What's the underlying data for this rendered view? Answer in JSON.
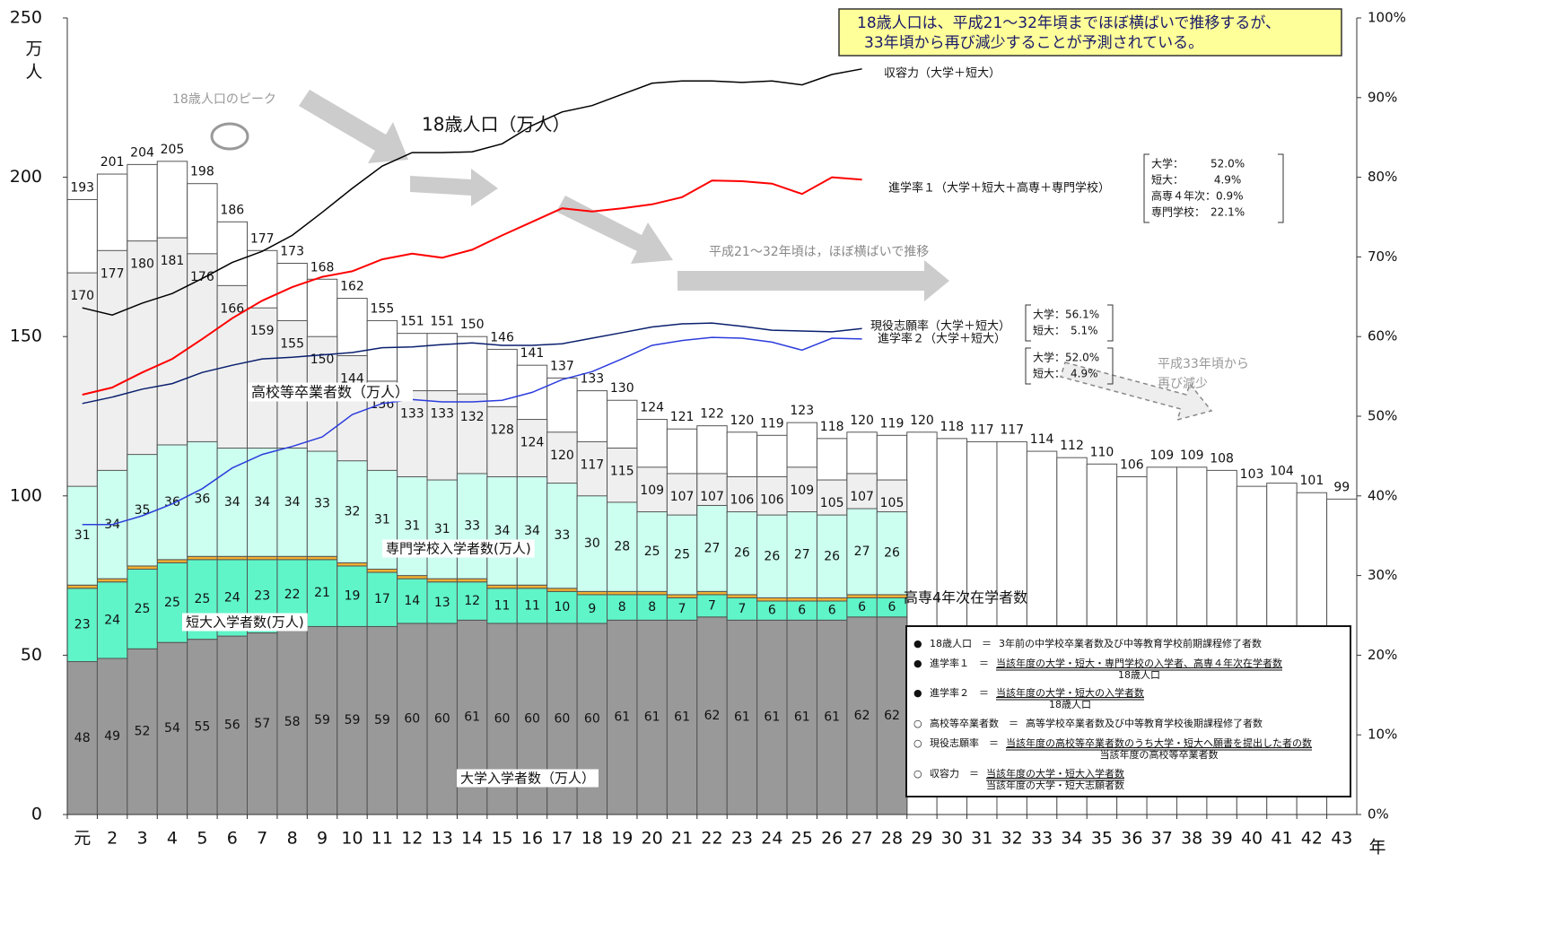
{
  "chart_data": {
    "type": "bar",
    "categories": [
      "元",
      "2",
      "3",
      "4",
      "5",
      "6",
      "7",
      "8",
      "9",
      "10",
      "11",
      "12",
      "13",
      "14",
      "15",
      "16",
      "17",
      "18",
      "19",
      "20",
      "21",
      "22",
      "23",
      "24",
      "25",
      "26",
      "27",
      "28",
      "29",
      "30",
      "31",
      "32",
      "33",
      "34",
      "35",
      "36",
      "37",
      "38",
      "39",
      "40",
      "41",
      "42",
      "43"
    ],
    "ylim": [
      0,
      250
    ],
    "yticks": [
      0,
      50,
      100,
      150,
      200,
      250
    ],
    "ylabel": "万人",
    "y2lim": [
      0,
      100
    ],
    "y2ticks": [
      {
        "value": 0,
        "label": "0%"
      },
      {
        "value": 10,
        "label": "10%"
      },
      {
        "value": 20,
        "label": "20%"
      },
      {
        "value": 30,
        "label": "30%"
      },
      {
        "value": 40,
        "label": "40%"
      },
      {
        "value": 50,
        "label": "50%"
      },
      {
        "value": 60,
        "label": "60%"
      },
      {
        "value": 70,
        "label": "70%"
      },
      {
        "value": 80,
        "label": "80%"
      },
      {
        "value": 90,
        "label": "90%"
      },
      {
        "value": 100,
        "label": "100%"
      }
    ],
    "xlabel": "年",
    "grid": false,
    "series": [
      {
        "name": "18歳人口（万人）",
        "type": "bar",
        "color": "#ffffff",
        "values": [
          193,
          201,
          204,
          205,
          198,
          186,
          177,
          173,
          168,
          162,
          155,
          151,
          151,
          150,
          146,
          141,
          137,
          133,
          130,
          124,
          121,
          122,
          120,
          119,
          123,
          118,
          120,
          119,
          120,
          118,
          117,
          117,
          114,
          112,
          110,
          106,
          109,
          109,
          108,
          103,
          104,
          101,
          99
        ]
      },
      {
        "name": "高校等卒業者数（万人）",
        "type": "bar",
        "color": "#efefef",
        "values": [
          170,
          177,
          180,
          181,
          176,
          166,
          159,
          155,
          150,
          144,
          136,
          133,
          133,
          132,
          128,
          124,
          120,
          117,
          115,
          109,
          107,
          107,
          106,
          106,
          109,
          105,
          107,
          105,
          null,
          null,
          null,
          null,
          null,
          null,
          null,
          null,
          null,
          null,
          null,
          null,
          null,
          null,
          null
        ]
      },
      {
        "name": "大学入学者数（万人）",
        "type": "bar",
        "stack": "enrollment",
        "color": "#999999",
        "values": [
          48,
          49,
          52,
          54,
          55,
          56,
          57,
          58,
          59,
          59,
          59,
          60,
          60,
          61,
          60,
          60,
          60,
          60,
          61,
          61,
          61,
          62,
          61,
          61,
          61,
          61,
          62,
          62,
          null,
          null,
          null,
          null,
          null,
          null,
          null,
          null,
          null,
          null,
          null,
          null,
          null,
          null,
          null
        ]
      },
      {
        "name": "短大入学者数(万人)",
        "type": "bar",
        "stack": "enrollment",
        "color": "#5ff5c8",
        "values": [
          23,
          24,
          25,
          25,
          25,
          24,
          23,
          22,
          21,
          19,
          17,
          14,
          13,
          12,
          11,
          11,
          10,
          9,
          8,
          8,
          7,
          7,
          7,
          6,
          6,
          6,
          6,
          6,
          null,
          null,
          null,
          null,
          null,
          null,
          null,
          null,
          null,
          null,
          null,
          null,
          null,
          null,
          null
        ]
      },
      {
        "name": "高専4年次在学者数",
        "type": "bar",
        "stack": "enrollment",
        "color": "#f0b030",
        "values": [
          1,
          1,
          1,
          1,
          1,
          1,
          1,
          1,
          1,
          1,
          1,
          1,
          1,
          1,
          1,
          1,
          1,
          1,
          1,
          1,
          1,
          1,
          1,
          1,
          1,
          1,
          1,
          1,
          null,
          null,
          null,
          null,
          null,
          null,
          null,
          null,
          null,
          null,
          null,
          null,
          null,
          null,
          null
        ]
      },
      {
        "name": "専門学校入学者数(万人)",
        "type": "bar",
        "stack": "enrollment",
        "color": "#ccfff0",
        "values": [
          31,
          34,
          35,
          36,
          36,
          34,
          34,
          34,
          33,
          32,
          31,
          31,
          31,
          33,
          34,
          34,
          33,
          30,
          28,
          25,
          25,
          27,
          26,
          26,
          27,
          26,
          27,
          26,
          null,
          null,
          null,
          null,
          null,
          null,
          null,
          null,
          null,
          null,
          null,
          null,
          null,
          null,
          null
        ]
      },
      {
        "name": "収容力（大学＋短大）",
        "type": "line",
        "axis": "y2",
        "color": "#000000",
        "values": [
          63.6,
          62.7,
          64.2,
          65.4,
          67.3,
          69.3,
          70.7,
          72.7,
          75.6,
          78.6,
          81.4,
          83.1,
          83.1,
          83.2,
          84.2,
          86.5,
          88.2,
          89,
          90.4,
          91.8,
          92.1,
          92.1,
          91.9,
          92.1,
          91.6,
          92.9,
          93.6,
          null,
          null,
          null,
          null,
          null,
          null,
          null,
          null,
          null,
          null,
          null,
          null,
          null,
          null,
          null,
          null
        ]
      },
      {
        "name": "進学率１（大学＋短大＋高専＋専門学校）",
        "type": "line",
        "axis": "y2",
        "color": "#ff0000",
        "values": [
          52.7,
          53.6,
          55.5,
          57.2,
          59.7,
          62.3,
          64.5,
          66.2,
          67.5,
          68.2,
          69.7,
          70.4,
          69.9,
          70.9,
          72.7,
          74.4,
          76.1,
          75.7,
          76.1,
          76.6,
          77.5,
          79.6,
          79.5,
          79.2,
          77.9,
          80,
          79.7,
          null,
          null,
          null,
          null,
          null,
          null,
          null,
          null,
          null,
          null,
          null,
          null,
          null,
          null,
          null,
          null
        ]
      },
      {
        "name": "現役志願率（大学＋短大）",
        "type": "line",
        "axis": "y2",
        "color": "#0a1f6e",
        "values": [
          51.6,
          52.4,
          53.4,
          54.1,
          55.5,
          56.4,
          57.2,
          57.4,
          57.7,
          58,
          58.6,
          58.7,
          59,
          59.2,
          58.9,
          58.9,
          59.1,
          59.8,
          60.5,
          61.2,
          61.6,
          61.7,
          61.3,
          60.8,
          60.7,
          60.6,
          61,
          null,
          null,
          null,
          null,
          null,
          null,
          null,
          null,
          null,
          null,
          null,
          null,
          null,
          null,
          null,
          null
        ]
      },
      {
        "name": "進学率２（大学＋短大）",
        "type": "line",
        "axis": "y2",
        "color": "#2c3cdc",
        "values": [
          36.4,
          36.4,
          37.5,
          39,
          40.9,
          43.5,
          45.2,
          46.2,
          47.4,
          50.2,
          51.6,
          52.1,
          51.8,
          51.8,
          52,
          53,
          54.6,
          55.6,
          57.2,
          58.9,
          59.5,
          59.9,
          59.8,
          59.3,
          58.3,
          59.8,
          59.7,
          null,
          null,
          null,
          null,
          null,
          null,
          null,
          null,
          null,
          null,
          null,
          null,
          null,
          null,
          null,
          null
        ]
      }
    ],
    "callout": [
      "18歳人口は、平成21～32年頃までほぼ横ばいで推移するが、",
      "33年頃から再び減少することが予測されている。"
    ],
    "annotations": [
      "18歳人口のピーク",
      "平成21～32年頃は，ほぼ横ばいで推移",
      "平成33年頃から",
      "再び減少"
    ],
    "breakdowns": [
      [
        "大学：　　　52.0%",
        "短大：　　　 4.9%",
        "高専４年次：0.9%",
        "専門学校：　22.1%"
      ],
      [
        "大学：56.1%",
        "短大：　5.1%"
      ],
      [
        "大学：52.0%",
        "短大：　4.9%"
      ]
    ],
    "definitions": [
      {
        "marker": "●",
        "term": "18歳人口　＝",
        "text": "3年前の中学校卒業者数及び中等教育学校前期課程修了者数"
      },
      {
        "marker": "●",
        "term": "進学率１　＝",
        "numerator": "当該年度の大学・短大・専門学校の入学者、高専４年次在学者数",
        "denominator": "18歳人口"
      },
      {
        "marker": "●",
        "term": "進学率２　＝",
        "numerator": "当該年度の大学・短大の入学者数",
        "denominator": "18歳人口"
      },
      {
        "marker": "○",
        "term": "高校等卒業者数　＝",
        "text": "高等学校卒業者数及び中等教育学校後期課程修了者数"
      },
      {
        "marker": "○",
        "term": "現役志願率　＝",
        "numerator": "当該年度の高校等卒業者数のうち大学・短大へ願書を提出した者の数",
        "denominator": "当該年度の高校等卒業者数"
      },
      {
        "marker": "○",
        "term": "収容力　＝",
        "numerator": "当該年度の大学・短大入学者数",
        "denominator": "当該年度の大学・短大志願者数"
      }
    ]
  }
}
